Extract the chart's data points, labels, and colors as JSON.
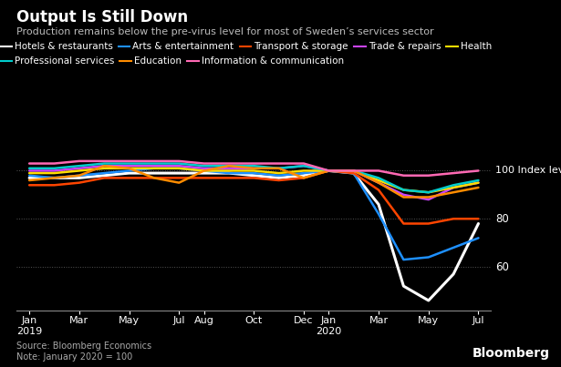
{
  "title": "Output Is Still Down",
  "subtitle": "Production remains below the pre-virus level for most of Sweden’s services sector",
  "source": "Source: Bloomberg Economics",
  "note": "Note: January 2020 = 100",
  "bloomberg": "Bloomberg",
  "background_color": "#000000",
  "text_color": "#ffffff",
  "yticks": [
    60,
    80,
    100
  ],
  "ylim": [
    42,
    113
  ],
  "series": {
    "Hotels & restaurants": {
      "color": "#ffffff",
      "lw": 2.2,
      "data": [
        97,
        97,
        97,
        98,
        99,
        99,
        99,
        99,
        99,
        98,
        97,
        98,
        100,
        99,
        86,
        52,
        46,
        57,
        78
      ]
    },
    "Arts & entertainment": {
      "color": "#1e90ff",
      "lw": 1.8,
      "data": [
        98,
        97,
        98,
        99,
        100,
        101,
        101,
        100,
        99,
        99,
        98,
        99,
        100,
        99,
        82,
        63,
        64,
        68,
        72
      ]
    },
    "Transport & storage": {
      "color": "#ff4500",
      "lw": 1.8,
      "data": [
        94,
        94,
        95,
        97,
        97,
        97,
        97,
        97,
        97,
        97,
        96,
        97,
        100,
        99,
        92,
        78,
        78,
        80,
        80
      ]
    },
    "Trade & repairs": {
      "color": "#cc44ff",
      "lw": 1.8,
      "data": [
        100,
        100,
        101,
        102,
        102,
        102,
        102,
        101,
        101,
        101,
        101,
        102,
        100,
        100,
        95,
        90,
        88,
        93,
        95
      ]
    },
    "Health": {
      "color": "#ffdd00",
      "lw": 1.8,
      "data": [
        99,
        99,
        100,
        101,
        101,
        101,
        101,
        100,
        100,
        100,
        99,
        100,
        100,
        100,
        96,
        92,
        91,
        93,
        95
      ]
    },
    "Professional services": {
      "color": "#00cccc",
      "lw": 1.8,
      "data": [
        101,
        101,
        102,
        103,
        103,
        103,
        103,
        102,
        102,
        102,
        101,
        102,
        100,
        100,
        97,
        92,
        91,
        94,
        96
      ]
    },
    "Education": {
      "color": "#ff8c00",
      "lw": 1.8,
      "data": [
        96,
        97,
        98,
        102,
        101,
        97,
        95,
        100,
        102,
        101,
        101,
        97,
        100,
        100,
        95,
        89,
        89,
        91,
        93
      ]
    },
    "Information & communication": {
      "color": "#ff69b4",
      "lw": 1.8,
      "data": [
        103,
        103,
        104,
        104,
        104,
        104,
        104,
        103,
        103,
        103,
        103,
        103,
        100,
        100,
        100,
        98,
        98,
        99,
        100
      ]
    }
  },
  "xtick_positions": [
    0,
    2,
    4,
    6,
    7,
    9,
    11,
    12,
    14,
    16,
    18
  ],
  "xtick_labels": [
    "Jan\n2019",
    "Mar",
    "May",
    "Jul",
    "Aug",
    "Oct",
    "Dec",
    "Jan\n2020",
    "Mar",
    "May",
    "Jul"
  ],
  "legend_entries": [
    {
      "label": "Hotels & restaurants",
      "color": "#ffffff"
    },
    {
      "label": "Arts & entertainment",
      "color": "#1e90ff"
    },
    {
      "label": "Transport & storage",
      "color": "#ff4500"
    },
    {
      "label": "Trade & repairs",
      "color": "#cc44ff"
    },
    {
      "label": "Health",
      "color": "#ffdd00"
    },
    {
      "label": "Professional services",
      "color": "#00cccc"
    },
    {
      "label": "Education",
      "color": "#ff8c00"
    },
    {
      "label": "Information & communication",
      "color": "#ff69b4"
    }
  ]
}
